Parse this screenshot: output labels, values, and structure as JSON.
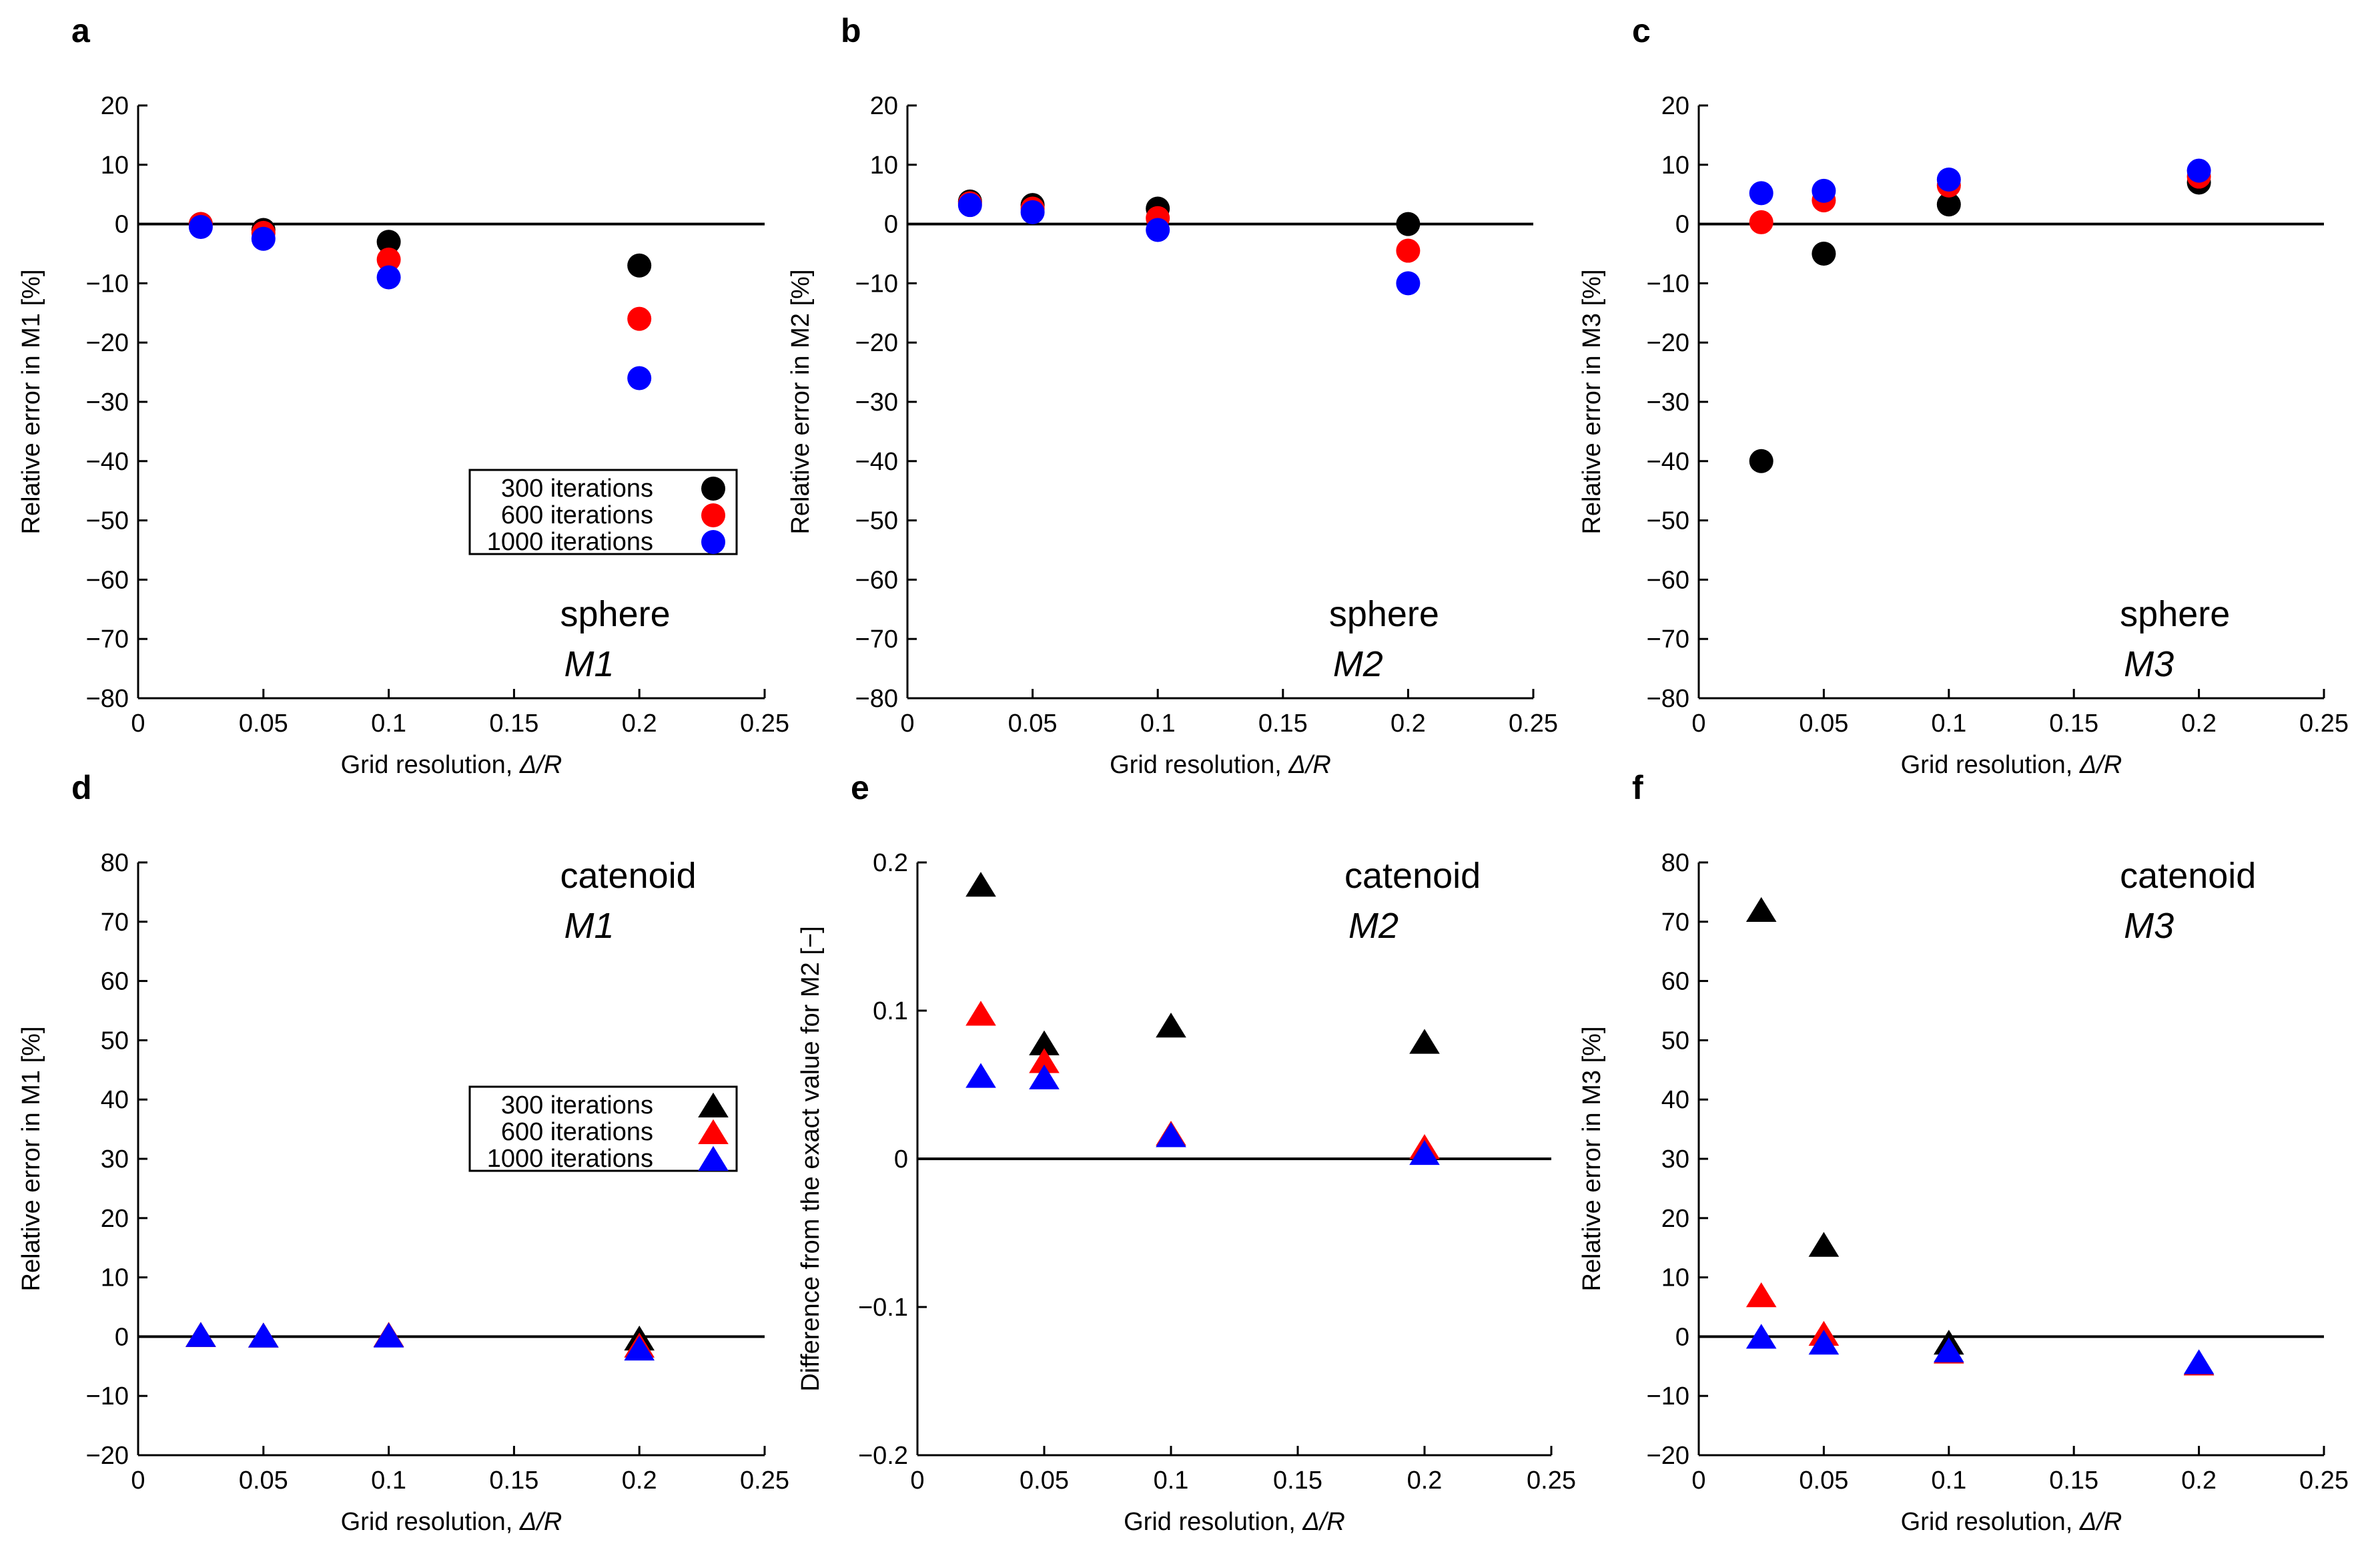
{
  "colors": {
    "s300": "#000000",
    "s600": "#ff0000",
    "s1000": "#0000ff",
    "axis": "#000000"
  },
  "legend_labels": [
    "300 iterations",
    "600 iterations",
    "1000 iterations"
  ],
  "chart_data": [
    {
      "panel": "a",
      "type": "scatter",
      "marker": "circle",
      "shape": "sphere",
      "method": "M1",
      "xlabel": "Grid resolution,",
      "xlabel_italic": "Δ/R",
      "ylabel": "Relative error in M1 [%]",
      "xlim": [
        0,
        0.25
      ],
      "ylim": [
        -80,
        20
      ],
      "xticks": [
        "0",
        "0.05",
        "0.1",
        "0.15",
        "0.2",
        "0.25"
      ],
      "xtick_values": [
        0,
        0.05,
        0.1,
        0.15,
        0.2,
        0.25
      ],
      "yticks": [
        "20",
        "10",
        "0",
        "−10",
        "−20",
        "−30",
        "−40",
        "−50",
        "−60",
        "−70",
        "−80"
      ],
      "ytick_values": [
        20,
        10,
        0,
        -10,
        -20,
        -30,
        -40,
        -50,
        -60,
        -70,
        -80
      ],
      "legend": "right-middle",
      "x": [
        0.025,
        0.05,
        0.1,
        0.2
      ],
      "series": [
        {
          "name": "300 iterations",
          "color": "#000000",
          "values": [
            0,
            -1,
            -3,
            -7
          ]
        },
        {
          "name": "600 iterations",
          "color": "#ff0000",
          "values": [
            0,
            -1.5,
            -6,
            -16
          ]
        },
        {
          "name": "1000 iterations",
          "color": "#0000ff",
          "values": [
            -0.5,
            -2.5,
            -9,
            -26
          ]
        }
      ]
    },
    {
      "panel": "b",
      "type": "scatter",
      "marker": "circle",
      "shape": "sphere",
      "method": "M2",
      "xlabel": "Grid resolution,",
      "xlabel_italic": "Δ/R",
      "ylabel": "Relative error in M2 [%]",
      "xlim": [
        0,
        0.25
      ],
      "ylim": [
        -80,
        20
      ],
      "xticks": [
        "0",
        "0.05",
        "0.1",
        "0.15",
        "0.2",
        "0.25"
      ],
      "xtick_values": [
        0,
        0.05,
        0.1,
        0.15,
        0.2,
        0.25
      ],
      "yticks": [
        "20",
        "10",
        "0",
        "−10",
        "−20",
        "−30",
        "−40",
        "−50",
        "−60",
        "−70",
        "−80"
      ],
      "ytick_values": [
        20,
        10,
        0,
        -10,
        -20,
        -30,
        -40,
        -50,
        -60,
        -70,
        -80
      ],
      "x": [
        0.025,
        0.05,
        0.1,
        0.2
      ],
      "series": [
        {
          "name": "300 iterations",
          "color": "#000000",
          "values": [
            3.8,
            3.2,
            2.6,
            0
          ]
        },
        {
          "name": "600 iterations",
          "color": "#ff0000",
          "values": [
            3.5,
            2.6,
            1.0,
            -4.5
          ]
        },
        {
          "name": "1000 iterations",
          "color": "#0000ff",
          "values": [
            3.2,
            2.0,
            -1.0,
            -10
          ]
        }
      ]
    },
    {
      "panel": "c",
      "type": "scatter",
      "marker": "circle",
      "shape": "sphere",
      "method": "M3",
      "xlabel": "Grid resolution,",
      "xlabel_italic": "Δ/R",
      "ylabel": "Relative error in M3 [%]",
      "xlim": [
        0,
        0.25
      ],
      "ylim": [
        -80,
        20
      ],
      "xticks": [
        "0",
        "0.05",
        "0.1",
        "0.15",
        "0.2",
        "0.25"
      ],
      "xtick_values": [
        0,
        0.05,
        0.1,
        0.15,
        0.2,
        0.25
      ],
      "yticks": [
        "20",
        "10",
        "0",
        "−10",
        "−20",
        "−30",
        "−40",
        "−50",
        "−60",
        "−70",
        "−80"
      ],
      "ytick_values": [
        20,
        10,
        0,
        -10,
        -20,
        -30,
        -40,
        -50,
        -60,
        -70,
        -80
      ],
      "x": [
        0.025,
        0.05,
        0.1,
        0.2
      ],
      "series": [
        {
          "name": "300 iterations",
          "color": "#000000",
          "values": [
            -40,
            -5,
            3.3,
            7
          ]
        },
        {
          "name": "600 iterations",
          "color": "#ff0000",
          "values": [
            0.3,
            4,
            6.5,
            8
          ]
        },
        {
          "name": "1000 iterations",
          "color": "#0000ff",
          "values": [
            5.2,
            5.6,
            7.5,
            9
          ]
        }
      ]
    },
    {
      "panel": "d",
      "type": "scatter",
      "marker": "triangle",
      "shape": "catenoid",
      "method": "M1",
      "xlabel": "Grid resolution,",
      "xlabel_italic": "Δ/R",
      "ylabel": "Relative error in M1 [%]",
      "xlim": [
        0,
        0.25
      ],
      "ylim": [
        -20,
        80
      ],
      "xticks": [
        "0",
        "0.05",
        "0.1",
        "0.15",
        "0.2",
        "0.25"
      ],
      "xtick_values": [
        0,
        0.05,
        0.1,
        0.15,
        0.2,
        0.25
      ],
      "yticks": [
        "80",
        "70",
        "60",
        "50",
        "40",
        "30",
        "20",
        "10",
        "0",
        "−10",
        "−20"
      ],
      "ytick_values": [
        80,
        70,
        60,
        50,
        40,
        30,
        20,
        10,
        0,
        -10,
        -20
      ],
      "legend": "right-upper",
      "x": [
        0.025,
        0.05,
        0.1,
        0.2
      ],
      "series": [
        {
          "name": "300 iterations",
          "color": "#000000",
          "values": [
            0.3,
            0.2,
            0.3,
            -0.3
          ]
        },
        {
          "name": "600 iterations",
          "color": "#ff0000",
          "values": [
            0.3,
            0.2,
            0.3,
            -1.5
          ]
        },
        {
          "name": "1000 iterations",
          "color": "#0000ff",
          "values": [
            0.3,
            0.2,
            0.2,
            -2.0
          ]
        }
      ]
    },
    {
      "panel": "e",
      "type": "scatter",
      "marker": "triangle",
      "shape": "catenoid",
      "method": "M2",
      "xlabel": "Grid resolution,",
      "xlabel_italic": "Δ/R",
      "ylabel": "Difference from the exact value for M2 [−]",
      "xlim": [
        0,
        0.25
      ],
      "ylim": [
        -0.2,
        0.2
      ],
      "xticks": [
        "0",
        "0.05",
        "0.1",
        "0.15",
        "0.2",
        "0.25"
      ],
      "xtick_values": [
        0,
        0.05,
        0.1,
        0.15,
        0.2,
        0.25
      ],
      "yticks": [
        "0.2",
        "0.1",
        "0",
        "−0.1",
        "−0.2"
      ],
      "ytick_values": [
        0.2,
        0.1,
        0,
        -0.1,
        -0.2
      ],
      "x": [
        0.025,
        0.05,
        0.1,
        0.2
      ],
      "series": [
        {
          "name": "300 iterations",
          "color": "#000000",
          "values": [
            0.185,
            0.078,
            0.09,
            0.079
          ]
        },
        {
          "name": "600 iterations",
          "color": "#ff0000",
          "values": [
            0.098,
            0.066,
            0.017,
            0.008
          ]
        },
        {
          "name": "1000 iterations",
          "color": "#0000ff",
          "values": [
            0.056,
            0.055,
            0.016,
            0.004
          ]
        }
      ]
    },
    {
      "panel": "f",
      "type": "scatter",
      "marker": "triangle",
      "shape": "catenoid",
      "method": "M3",
      "xlabel": "Grid resolution,",
      "xlabel_italic": "Δ/R",
      "ylabel": "Relative error in M3 [%]",
      "xlim": [
        0,
        0.25
      ],
      "ylim": [
        -20,
        80
      ],
      "xticks": [
        "0",
        "0.05",
        "0.1",
        "0.15",
        "0.2",
        "0.25"
      ],
      "xtick_values": [
        0,
        0.05,
        0.1,
        0.15,
        0.2,
        0.25
      ],
      "yticks": [
        "80",
        "70",
        "60",
        "50",
        "40",
        "30",
        "20",
        "10",
        "0",
        "−10",
        "−20"
      ],
      "ytick_values": [
        80,
        70,
        60,
        50,
        40,
        30,
        20,
        10,
        0,
        -10,
        -20
      ],
      "x": [
        0.025,
        0.05,
        0.1,
        0.2
      ],
      "series": [
        {
          "name": "300 iterations",
          "color": "#000000",
          "values": [
            72,
            15.5,
            -1,
            -4.5
          ]
        },
        {
          "name": "600 iterations",
          "color": "#ff0000",
          "values": [
            7,
            0.5,
            -2.5,
            -4.5
          ]
        },
        {
          "name": "1000 iterations",
          "color": "#0000ff",
          "values": [
            0,
            -1,
            -2.3,
            -4.3
          ]
        }
      ]
    }
  ]
}
